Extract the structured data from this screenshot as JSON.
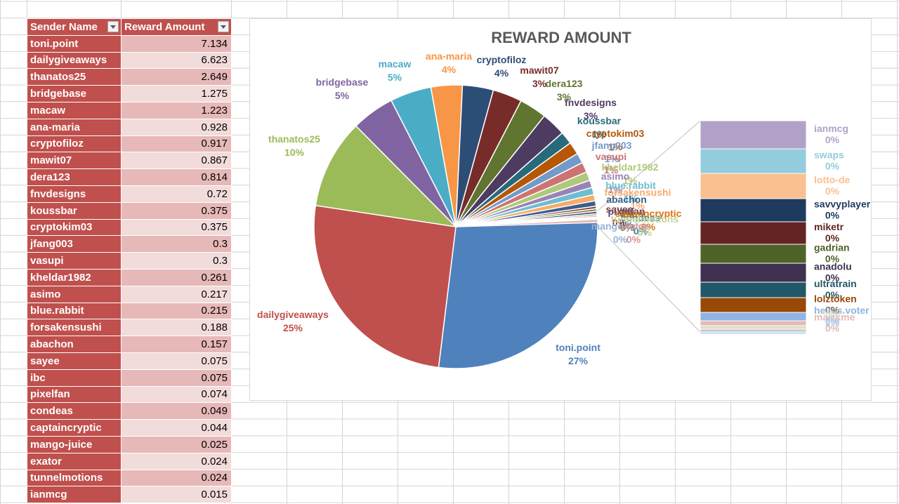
{
  "table": {
    "headers": [
      "Sender Name",
      "Reward Amount"
    ],
    "rows": [
      [
        "toni.point",
        "7.134"
      ],
      [
        "dailygiveaways",
        "6.623"
      ],
      [
        "thanatos25",
        "2.649"
      ],
      [
        "bridgebase",
        "1.275"
      ],
      [
        "macaw",
        "1.223"
      ],
      [
        "ana-maria",
        "0.928"
      ],
      [
        "cryptofiloz",
        "0.917"
      ],
      [
        "mawit07",
        "0.867"
      ],
      [
        "dera123",
        "0.814"
      ],
      [
        "fnvdesigns",
        "0.72"
      ],
      [
        "koussbar",
        "0.375"
      ],
      [
        "cryptokim03",
        "0.375"
      ],
      [
        "jfang003",
        "0.3"
      ],
      [
        "vasupi",
        "0.3"
      ],
      [
        "kheldar1982",
        "0.261"
      ],
      [
        "asimo",
        "0.217"
      ],
      [
        "blue.rabbit",
        "0.215"
      ],
      [
        "forsakensushi",
        "0.188"
      ],
      [
        "abachon",
        "0.157"
      ],
      [
        "sayee",
        "0.075"
      ],
      [
        "ibc",
        "0.075"
      ],
      [
        "pixelfan",
        "0.074"
      ],
      [
        "condeas",
        "0.049"
      ],
      [
        "captaincryptic",
        "0.044"
      ],
      [
        "mango-juice",
        "0.025"
      ],
      [
        "exator",
        "0.024"
      ],
      [
        "tunnelmotions",
        "0.024"
      ],
      [
        "ianmcg",
        "0.015"
      ]
    ]
  },
  "chart_data": {
    "type": "pie",
    "subtype": "pie-of-pie (bar of pie)",
    "title": "REWARD AMOUNT",
    "slices": [
      {
        "label": "toni.point",
        "value": 7.134,
        "pct": "27%",
        "color": "#4f81bd"
      },
      {
        "label": "dailygiveaways",
        "value": 6.623,
        "pct": "25%",
        "color": "#c0504d"
      },
      {
        "label": "thanatos25",
        "value": 2.649,
        "pct": "10%",
        "color": "#9bbb59"
      },
      {
        "label": "bridgebase",
        "value": 1.275,
        "pct": "5%",
        "color": "#8064a2"
      },
      {
        "label": "macaw",
        "value": 1.223,
        "pct": "5%",
        "color": "#4bacc6"
      },
      {
        "label": "ana-maria",
        "value": 0.928,
        "pct": "4%",
        "color": "#f79646"
      },
      {
        "label": "cryptofiloz",
        "value": 0.917,
        "pct": "4%",
        "color": "#2c4d75"
      },
      {
        "label": "mawit07",
        "value": 0.867,
        "pct": "3%",
        "color": "#772c2a"
      },
      {
        "label": "dera123",
        "value": 0.814,
        "pct": "3%",
        "color": "#5f7530"
      },
      {
        "label": "fnvdesigns",
        "value": 0.72,
        "pct": "3%",
        "color": "#4d3b62"
      },
      {
        "label": "koussbar",
        "value": 0.375,
        "pct": "1%",
        "color": "#276a7c"
      },
      {
        "label": "cryptokim03",
        "value": 0.375,
        "pct": "1%",
        "color": "#b65708"
      },
      {
        "label": "jfang003",
        "value": 0.3,
        "pct": "1%",
        "color": "#729aca"
      },
      {
        "label": "vasupi",
        "value": 0.3,
        "pct": "1%",
        "color": "#cd7371"
      },
      {
        "label": "kheldar1982",
        "value": 0.261,
        "pct": "1%",
        "color": "#afc97a"
      },
      {
        "label": "asimo",
        "value": 0.217,
        "pct": "1%",
        "color": "#9983b5"
      },
      {
        "label": "blue.rabbit",
        "value": 0.215,
        "pct": "1%",
        "color": "#6fbdd1"
      },
      {
        "label": "forsakensushi",
        "value": 0.188,
        "pct": "1%",
        "color": "#f9ab6b"
      },
      {
        "label": "abachon",
        "value": 0.157,
        "pct": "1%",
        "color": "#3a5e8c"
      },
      {
        "label": "sayee",
        "value": 0.075,
        "pct": "0%",
        "color": "#8c3836"
      },
      {
        "label": "ibc",
        "value": 0.075,
        "pct": "0%",
        "color": "#728c3c"
      },
      {
        "label": "pixelfan",
        "value": 0.074,
        "pct": "0%",
        "color": "#5c4776"
      },
      {
        "label": "condeas",
        "value": 0.049,
        "pct": "0%",
        "color": "#2e8197"
      },
      {
        "label": "captaincryptic",
        "value": 0.044,
        "pct": "0%",
        "color": "#e0700a"
      },
      {
        "label": "mango-juice",
        "value": 0.025,
        "pct": "0%",
        "color": "#95b3d7"
      },
      {
        "label": "exator",
        "value": 0.024,
        "pct": "0%",
        "color": "#d99694"
      },
      {
        "label": "tunnelmotions",
        "value": 0.024,
        "pct": "0%",
        "color": "#c3d69b"
      }
    ],
    "secondary_bar": [
      {
        "label": "ianmcg",
        "pct": "0%",
        "color": "#b2a1c7"
      },
      {
        "label": "swaps",
        "pct": "0%",
        "color": "#93cddd"
      },
      {
        "label": "lotto-de",
        "pct": "0%",
        "color": "#fac08f"
      },
      {
        "label": "savvyplayer",
        "pct": "0%",
        "color": "#1f3a5f"
      },
      {
        "label": "miketr",
        "pct": "0%",
        "color": "#632523"
      },
      {
        "label": "gadrian",
        "pct": "0%",
        "color": "#4f6228"
      },
      {
        "label": "anadolu",
        "pct": "0%",
        "color": "#3f3151"
      },
      {
        "label": "ultratrain",
        "pct": "0%",
        "color": "#215867"
      },
      {
        "label": "lolztoken",
        "pct": "0%",
        "color": "#984807"
      },
      {
        "label": "helios.voter",
        "pct": "0%",
        "color": "#8eb4e3"
      },
      {
        "label": "martkme",
        "pct": "0%",
        "color": "#e6b9b8"
      },
      {
        "label": "",
        "pct": "0%",
        "color": "#d7e4bd"
      },
      {
        "label": "",
        "pct": "0%",
        "color": "#ccc1da"
      },
      {
        "label": "",
        "pct": "0%",
        "color": "#b7dee8"
      }
    ]
  }
}
